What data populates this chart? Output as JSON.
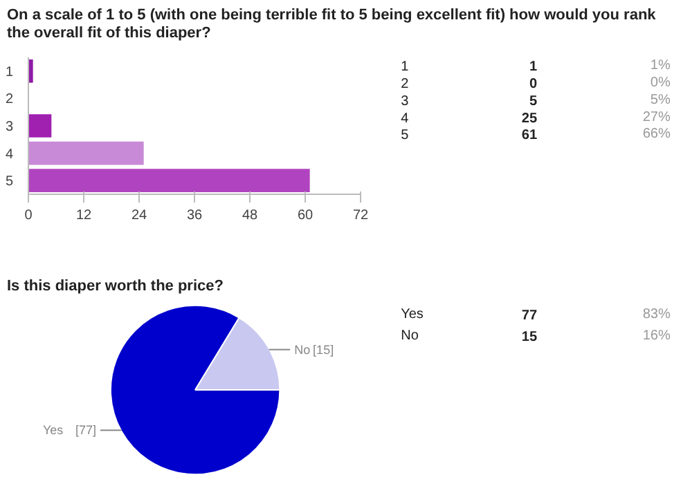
{
  "chart_data": [
    {
      "type": "bar",
      "orientation": "horizontal",
      "title": "On a scale of 1 to 5 (with one being terrible fit to 5 being excellent fit) how would you rank the overall fit of this diaper?",
      "categories": [
        "1",
        "2",
        "3",
        "4",
        "5"
      ],
      "values": [
        1,
        0,
        5,
        25,
        61
      ],
      "colors": [
        "#8e1ba6",
        "#9a2ab0",
        "#a020b0",
        "#c88ad6",
        "#b044c0"
      ],
      "xlim": [
        0,
        72
      ],
      "xticks": [
        0,
        12,
        24,
        36,
        48,
        60,
        72
      ],
      "annotations": [
        "1",
        "1",
        "1%",
        "2",
        "0",
        "0%",
        "3",
        "5",
        "5%",
        "4",
        "25",
        "27%",
        "5",
        "61",
        "66%"
      ]
    },
    {
      "type": "pie",
      "title": "Is this diaper worth the price?",
      "categories": [
        "Yes",
        "No"
      ],
      "values": [
        77,
        15
      ],
      "colors": [
        "#0000cc",
        "#c8c8f0"
      ],
      "value_labels": [
        "[77]",
        "[15]"
      ],
      "annotations": [
        "Yes",
        "77",
        "83%",
        "No",
        "15",
        "16%"
      ]
    }
  ]
}
